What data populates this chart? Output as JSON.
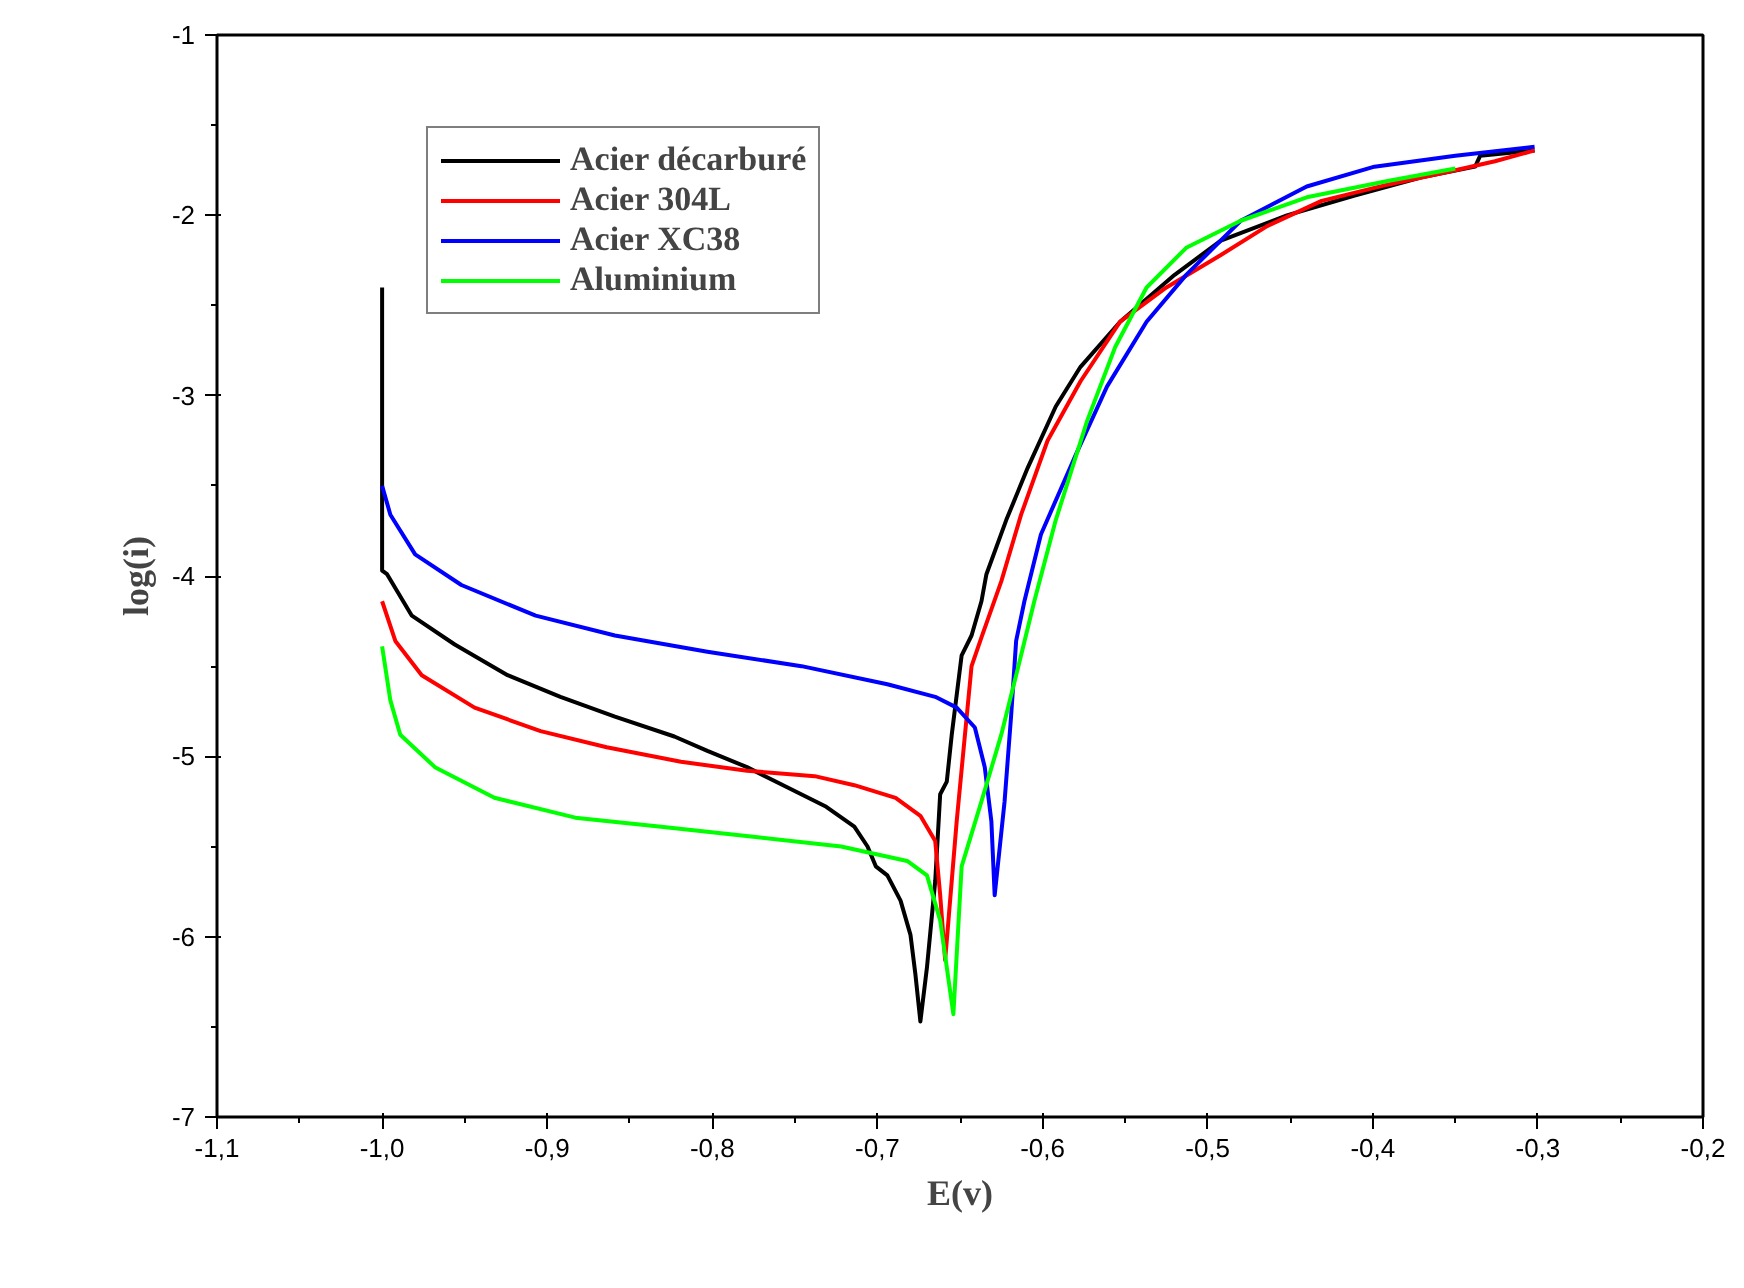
{
  "chart_data": {
    "type": "line",
    "xlabel": "E(v)",
    "ylabel": "log(i)",
    "xlim": [
      -1.1,
      -0.2
    ],
    "ylim": [
      -7,
      -1
    ],
    "xticks": [
      {
        "value": -1.1,
        "label": "-1,1"
      },
      {
        "value": -1.0,
        "label": "-1,0"
      },
      {
        "value": -0.9,
        "label": "-0,9"
      },
      {
        "value": -0.8,
        "label": "-0,8"
      },
      {
        "value": -0.7,
        "label": "-0,7"
      },
      {
        "value": -0.6,
        "label": "-0,6"
      },
      {
        "value": -0.5,
        "label": "-0,5"
      },
      {
        "value": -0.4,
        "label": "-0,4"
      },
      {
        "value": -0.3,
        "label": "-0,3"
      },
      {
        "value": -0.2,
        "label": "-0,2"
      }
    ],
    "yticks": [
      -7,
      -6,
      -5,
      -4,
      -3,
      -2,
      -1
    ],
    "grid": false,
    "legend": "top left",
    "marker": "none",
    "line_style": "solid",
    "series": [
      {
        "name": "Acier décarburé",
        "color": "#000000",
        "x": [
          -1.0,
          -1.0,
          -0.997,
          -0.982,
          -0.956,
          -0.924,
          -0.892,
          -0.859,
          -0.823,
          -0.803,
          -0.779,
          -0.755,
          -0.731,
          -0.714,
          -0.706,
          -0.701,
          -0.694,
          -0.686,
          -0.68,
          -0.677,
          -0.674,
          -0.67,
          -0.665,
          -0.662,
          -0.658,
          -0.655,
          -0.649,
          -0.643,
          -0.637,
          -0.634,
          -0.622,
          -0.609,
          -0.592,
          -0.577,
          -0.553,
          -0.52,
          -0.492,
          -0.452,
          -0.411,
          -0.371,
          -0.338,
          -0.335,
          -0.302
        ],
        "values": [
          -2.4,
          -3.97,
          -3.99,
          -4.22,
          -4.38,
          -4.55,
          -4.67,
          -4.78,
          -4.89,
          -4.97,
          -5.06,
          -5.17,
          -5.28,
          -5.39,
          -5.5,
          -5.61,
          -5.66,
          -5.8,
          -5.99,
          -6.21,
          -6.47,
          -6.17,
          -5.69,
          -5.21,
          -5.14,
          -4.88,
          -4.44,
          -4.33,
          -4.14,
          -3.99,
          -3.69,
          -3.4,
          -3.06,
          -2.84,
          -2.59,
          -2.33,
          -2.14,
          -2.0,
          -1.89,
          -1.79,
          -1.73,
          -1.67,
          -1.64
        ]
      },
      {
        "name": "Acier 304L",
        "color": "#ff0000",
        "x": [
          -1.0,
          -0.992,
          -0.976,
          -0.944,
          -0.904,
          -0.864,
          -0.819,
          -0.779,
          -0.738,
          -0.714,
          -0.689,
          -0.674,
          -0.665,
          -0.662,
          -0.659,
          -0.655,
          -0.652,
          -0.647,
          -0.643,
          -0.637,
          -0.625,
          -0.613,
          -0.597,
          -0.577,
          -0.553,
          -0.525,
          -0.492,
          -0.464,
          -0.431,
          -0.391,
          -0.35,
          -0.326,
          -0.302
        ],
        "values": [
          -4.14,
          -4.36,
          -4.55,
          -4.73,
          -4.86,
          -4.95,
          -5.03,
          -5.08,
          -5.11,
          -5.16,
          -5.23,
          -5.33,
          -5.47,
          -5.77,
          -6.13,
          -5.69,
          -5.36,
          -4.88,
          -4.5,
          -4.34,
          -4.03,
          -3.66,
          -3.25,
          -2.92,
          -2.59,
          -2.4,
          -2.22,
          -2.06,
          -1.92,
          -1.83,
          -1.75,
          -1.7,
          -1.64
        ]
      },
      {
        "name": "Acier XC38",
        "color": "#0000ff",
        "x": [
          -1.0,
          -0.995,
          -0.98,
          -0.952,
          -0.907,
          -0.859,
          -0.803,
          -0.746,
          -0.694,
          -0.665,
          -0.652,
          -0.641,
          -0.635,
          -0.631,
          -0.629,
          -0.623,
          -0.619,
          -0.616,
          -0.611,
          -0.601,
          -0.58,
          -0.561,
          -0.537,
          -0.513,
          -0.48,
          -0.44,
          -0.399,
          -0.35,
          -0.302
        ],
        "values": [
          -3.5,
          -3.66,
          -3.88,
          -4.05,
          -4.22,
          -4.33,
          -4.42,
          -4.5,
          -4.6,
          -4.67,
          -4.73,
          -4.84,
          -5.06,
          -5.36,
          -5.77,
          -5.25,
          -4.77,
          -4.36,
          -4.14,
          -3.77,
          -3.33,
          -2.95,
          -2.59,
          -2.33,
          -2.03,
          -1.84,
          -1.73,
          -1.67,
          -1.62
        ]
      },
      {
        "name": "Aluminium",
        "color": "#00ff00",
        "x": [
          -1.0,
          -0.995,
          -0.989,
          -0.968,
          -0.932,
          -0.883,
          -0.831,
          -0.771,
          -0.722,
          -0.682,
          -0.67,
          -0.662,
          -0.654,
          -0.649,
          -0.637,
          -0.625,
          -0.613,
          -0.605,
          -0.592,
          -0.573,
          -0.556,
          -0.537,
          -0.513,
          -0.48,
          -0.44,
          -0.391,
          -0.35
        ],
        "values": [
          -4.39,
          -4.69,
          -4.88,
          -5.06,
          -5.23,
          -5.34,
          -5.39,
          -5.45,
          -5.5,
          -5.58,
          -5.66,
          -5.91,
          -6.43,
          -5.61,
          -5.25,
          -4.88,
          -4.44,
          -4.14,
          -3.69,
          -3.14,
          -2.73,
          -2.4,
          -2.18,
          -2.03,
          -1.9,
          -1.81,
          -1.74
        ]
      }
    ]
  }
}
